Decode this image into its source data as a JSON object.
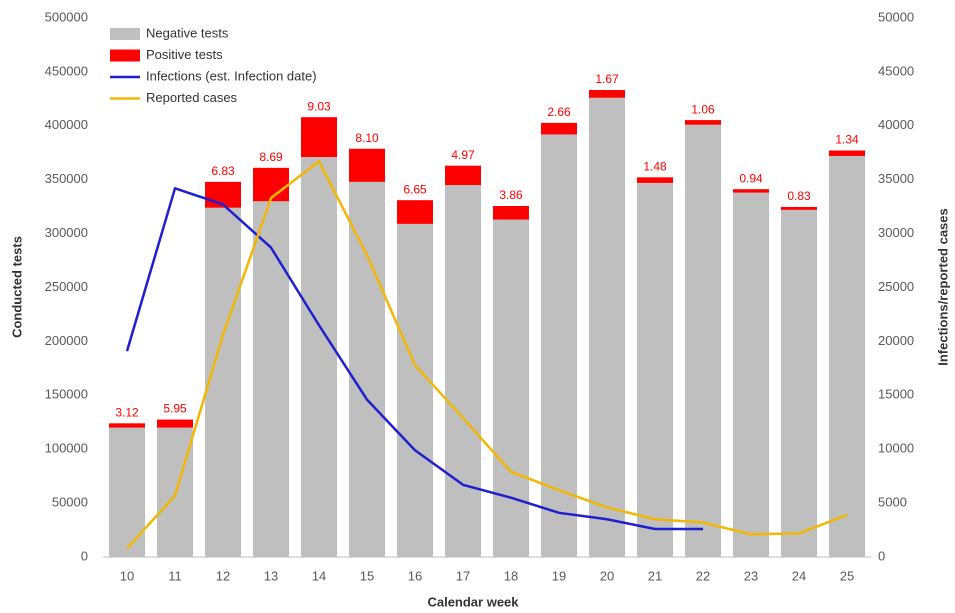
{
  "chart_data": {
    "type": "bar-line",
    "categories": [
      "10",
      "11",
      "12",
      "13",
      "14",
      "15",
      "16",
      "17",
      "18",
      "19",
      "20",
      "21",
      "22",
      "23",
      "24",
      "25"
    ],
    "series": [
      {
        "name": "Negative tests",
        "color": "#bfbfbf",
        "kind": "bar",
        "values": [
          120000,
          120000,
          324000,
          330000,
          371000,
          348000,
          309000,
          345000,
          313000,
          392000,
          426000,
          347000,
          401000,
          338000,
          322000,
          372000
        ]
      },
      {
        "name": "Positive tests",
        "color": "#ff0000",
        "kind": "bar",
        "values": [
          4000,
          7500,
          24000,
          31000,
          37000,
          30700,
          22000,
          18000,
          12600,
          10700,
          7200,
          5200,
          4300,
          3200,
          2700,
          5100
        ],
        "annotations": [
          "3.12",
          "5.95",
          "6.83",
          "8.69",
          "9.03",
          "8.10",
          "6.65",
          "4.97",
          "3.86",
          "2.66",
          "1.67",
          "1.48",
          "1.06",
          "0.94",
          "0.83",
          "1.34"
        ]
      },
      {
        "name": "Infections (est. Infection date)",
        "color": "#1f1fd0",
        "kind": "line",
        "axis": "y2",
        "values": [
          19100,
          34200,
          32700,
          28700,
          21500,
          14600,
          9900,
          6700,
          5500,
          4100,
          3500,
          2600,
          2600,
          null,
          null,
          null
        ]
      },
      {
        "name": "Reported cases",
        "color": "#f2b705",
        "kind": "line",
        "axis": "y2",
        "values": [
          800,
          5700,
          20600,
          33300,
          36700,
          28000,
          17800,
          12900,
          7900,
          6200,
          4600,
          3500,
          3200,
          2100,
          2200,
          3900
        ]
      }
    ],
    "xlabel": "Calendar week",
    "ylabel": "Conducted tests",
    "y2label": "Infections/reported cases",
    "ylim": [
      0,
      500000
    ],
    "yticks": [
      0,
      50000,
      100000,
      150000,
      200000,
      250000,
      300000,
      350000,
      400000,
      450000,
      500000
    ],
    "y2lim": [
      0,
      50000
    ],
    "y2ticks": [
      0,
      5000,
      10000,
      15000,
      20000,
      25000,
      30000,
      35000,
      40000,
      45000,
      50000
    ],
    "grid": false,
    "legend": "top-left"
  }
}
